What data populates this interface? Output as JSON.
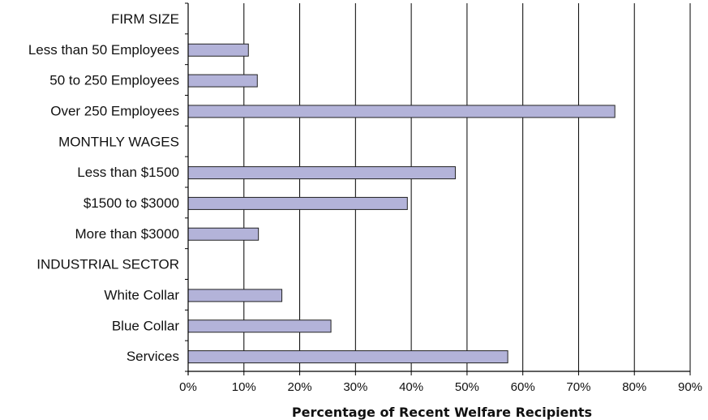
{
  "colors": {
    "bar_fill": "#b3b3d9",
    "bar_stroke": "#222222",
    "grid": "#000000",
    "text": "#111111"
  },
  "chart_data": {
    "type": "bar",
    "orientation": "horizontal",
    "categories": [
      "FIRM SIZE",
      "Less than 50 Employees",
      "50 to 250 Employees",
      "Over 250 Employees",
      "MONTHLY WAGES",
      "Less than $1500",
      "$1500 to $3000",
      "More than $3000",
      "INDUSTRIAL SECTOR",
      "White Collar",
      "Blue Collar",
      "Services"
    ],
    "values": [
      null,
      10.8,
      12.4,
      76.5,
      null,
      47.9,
      39.3,
      12.6,
      null,
      16.8,
      25.6,
      57.3
    ],
    "xlabel": "Percentage of Recent Welfare Recipients",
    "ylabel": "",
    "xlim": [
      0,
      90
    ],
    "xticks": [
      0,
      10,
      20,
      30,
      40,
      50,
      60,
      70,
      80,
      90
    ],
    "xtick_labels": [
      "0%",
      "10%",
      "20%",
      "30%",
      "40%",
      "50%",
      "60%",
      "70%",
      "80%",
      "90%"
    ],
    "grid": "vertical lines on",
    "legend": "none"
  }
}
